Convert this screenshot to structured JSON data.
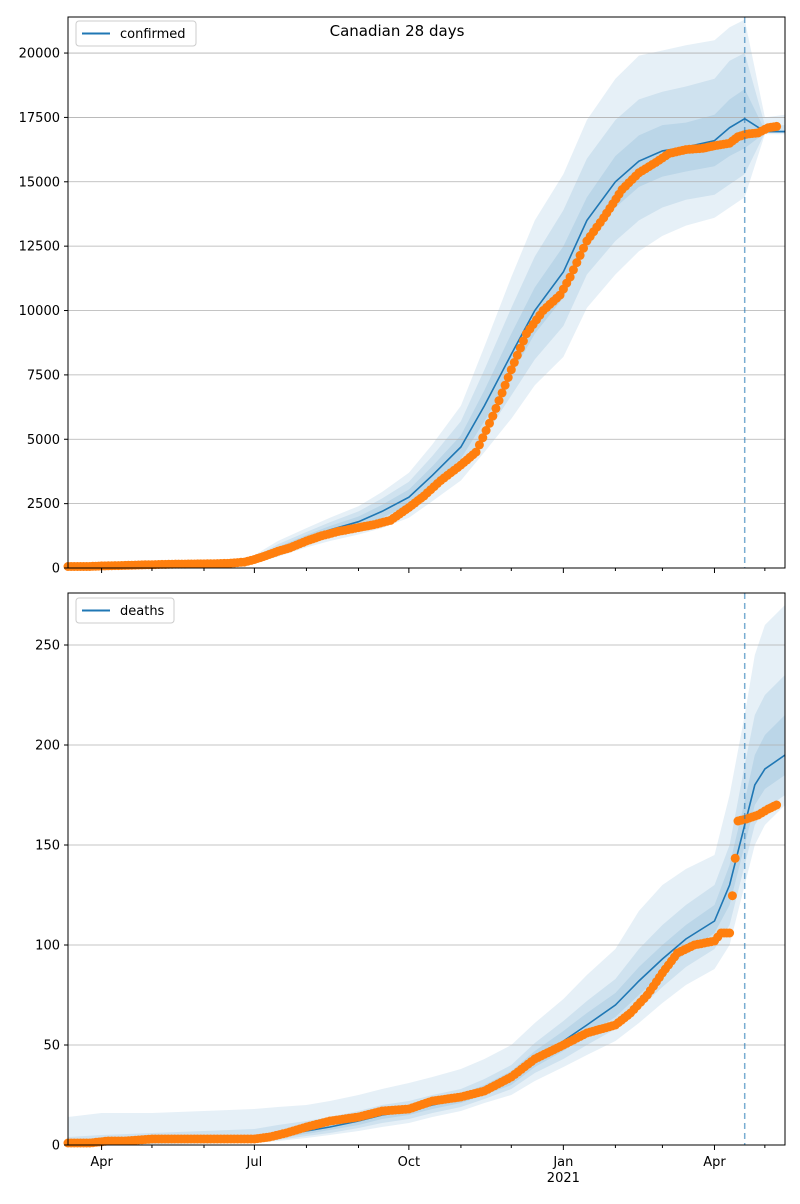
{
  "colors": {
    "model": "#1f77b4",
    "observed": "#ff7f0e",
    "band": "#1f77b4",
    "grid": "#b0b0b0",
    "vline": "#1f77b4"
  },
  "chart_data": [
    {
      "type": "line",
      "title": "Canadian 28 days",
      "legend": "confirmed",
      "legend_position": "top-left",
      "grid": "horizontal",
      "xlim": [
        "2020-03-12",
        "2021-05-13"
      ],
      "ylim": [
        0,
        21400
      ],
      "yticks": [
        0,
        2500,
        5000,
        7500,
        10000,
        12500,
        15000,
        17500,
        20000
      ],
      "ytick_labels": [
        "0",
        "2500",
        "5000",
        "7500",
        "10000",
        "12500",
        "15000",
        "17500",
        "20000"
      ],
      "forecast_start": "2021-04-19",
      "model_series": {
        "name": "confirmed",
        "x": [
          "2020-03-12",
          "2020-04-01",
          "2020-05-01",
          "2020-06-01",
          "2020-06-20",
          "2020-07-01",
          "2020-07-15",
          "2020-08-01",
          "2020-08-15",
          "2020-09-01",
          "2020-09-15",
          "2020-10-01",
          "2020-10-15",
          "2020-11-01",
          "2020-11-15",
          "2020-12-01",
          "2020-12-15",
          "2021-01-01",
          "2021-01-15",
          "2021-02-01",
          "2021-02-15",
          "2021-03-01",
          "2021-03-15",
          "2021-04-01",
          "2021-04-10",
          "2021-04-19",
          "2021-05-01",
          "2021-05-13"
        ],
        "y": [
          40,
          60,
          110,
          150,
          200,
          330,
          720,
          1150,
          1480,
          1800,
          2200,
          2750,
          3600,
          4700,
          6300,
          8300,
          10000,
          11500,
          13500,
          15000,
          15800,
          16200,
          16350,
          16600,
          17100,
          17450,
          16950,
          16950
        ],
        "band_inner_lo": [
          30,
          50,
          95,
          130,
          170,
          280,
          620,
          1020,
          1330,
          1600,
          1950,
          2450,
          3250,
          4250,
          5700,
          7500,
          9100,
          10500,
          12600,
          14000,
          14800,
          15200,
          15400,
          15600,
          16000,
          16300,
          16900,
          16900
        ],
        "band_inner_hi": [
          50,
          70,
          125,
          170,
          230,
          380,
          820,
          1280,
          1630,
          2000,
          2450,
          3050,
          3950,
          5150,
          6900,
          9100,
          10900,
          12500,
          14400,
          16000,
          16800,
          17200,
          17300,
          17600,
          18200,
          18600,
          17000,
          17000
        ],
        "band_mid_lo": [
          20,
          40,
          80,
          110,
          140,
          240,
          540,
          920,
          1200,
          1450,
          1750,
          2200,
          2950,
          3850,
          5100,
          6700,
          8100,
          9400,
          11400,
          12700,
          13500,
          14000,
          14300,
          14500,
          14900,
          15300,
          16900,
          16900
        ],
        "band_mid_hi": [
          60,
          80,
          140,
          190,
          260,
          430,
          920,
          1400,
          1780,
          2200,
          2700,
          3350,
          4350,
          5700,
          7700,
          10100,
          12100,
          13900,
          15900,
          17400,
          18200,
          18500,
          18700,
          19000,
          19700,
          20000,
          17200,
          17200
        ],
        "band_outer_lo": [
          10,
          30,
          60,
          90,
          110,
          190,
          440,
          800,
          1050,
          1300,
          1550,
          1950,
          2600,
          3400,
          4500,
          5800,
          7100,
          8200,
          10100,
          11400,
          12300,
          12900,
          13300,
          13600,
          14000,
          14400,
          16850,
          16850
        ],
        "band_outer_hi": [
          80,
          100,
          160,
          220,
          300,
          500,
          1050,
          1550,
          1950,
          2400,
          2950,
          3700,
          4800,
          6300,
          8600,
          11300,
          13500,
          15300,
          17400,
          19000,
          19900,
          20100,
          20300,
          20500,
          21000,
          21300,
          17500,
          17600
        ]
      },
      "observed": {
        "x": [
          "2020-03-12",
          "2020-03-25",
          "2020-04-01",
          "2020-04-15",
          "2020-05-01",
          "2020-05-15",
          "2020-06-01",
          "2020-06-15",
          "2020-06-25",
          "2020-07-01",
          "2020-07-08",
          "2020-07-15",
          "2020-07-22",
          "2020-08-01",
          "2020-08-10",
          "2020-08-20",
          "2020-09-01",
          "2020-09-10",
          "2020-09-20",
          "2020-10-01",
          "2020-10-10",
          "2020-10-20",
          "2020-11-01",
          "2020-11-10",
          "2020-11-20",
          "2020-12-01",
          "2020-12-10",
          "2020-12-20",
          "2020-12-30",
          "2021-01-05",
          "2021-01-15",
          "2021-01-25",
          "2021-02-05",
          "2021-02-15",
          "2021-02-25",
          "2021-03-05",
          "2021-03-15",
          "2021-03-25",
          "2021-04-01",
          "2021-04-10",
          "2021-04-15",
          "2021-04-20",
          "2021-04-27",
          "2021-05-03",
          "2021-05-08"
        ],
        "y": [
          60,
          60,
          80,
          100,
          130,
          150,
          160,
          180,
          230,
          330,
          480,
          650,
          780,
          1050,
          1250,
          1420,
          1570,
          1680,
          1850,
          2350,
          2800,
          3400,
          4000,
          4500,
          5900,
          7700,
          9100,
          10000,
          10600,
          11300,
          12700,
          13600,
          14700,
          15350,
          15750,
          16100,
          16250,
          16300,
          16400,
          16500,
          16750,
          16850,
          16900,
          17100,
          17150
        ]
      }
    },
    {
      "type": "line",
      "title": "",
      "legend": "deaths",
      "legend_position": "top-left",
      "grid": "horizontal",
      "xlim": [
        "2020-03-12",
        "2021-05-13"
      ],
      "ylim": [
        0,
        276
      ],
      "yticks": [
        0,
        50,
        100,
        150,
        200,
        250
      ],
      "ytick_labels": [
        "0",
        "50",
        "100",
        "150",
        "200",
        "250"
      ],
      "xtick_labels": [
        {
          "date": "2020-04-01",
          "label": "Apr"
        },
        {
          "date": "2020-07-01",
          "label": "Jul"
        },
        {
          "date": "2020-10-01",
          "label": "Oct"
        },
        {
          "date": "2021-01-01",
          "label": "Jan",
          "sub": "2021"
        },
        {
          "date": "2021-04-01",
          "label": "Apr"
        }
      ],
      "forecast_start": "2021-04-19",
      "model_series": {
        "name": "deaths",
        "x": [
          "2020-03-12",
          "2020-04-01",
          "2020-05-01",
          "2020-06-01",
          "2020-07-01",
          "2020-07-15",
          "2020-08-01",
          "2020-08-15",
          "2020-09-01",
          "2020-09-15",
          "2020-10-01",
          "2020-10-15",
          "2020-11-01",
          "2020-11-15",
          "2020-12-01",
          "2020-12-15",
          "2021-01-01",
          "2021-01-15",
          "2021-02-01",
          "2021-02-15",
          "2021-03-01",
          "2021-03-15",
          "2021-04-01",
          "2021-04-10",
          "2021-04-19",
          "2021-04-25",
          "2021-05-01",
          "2021-05-13"
        ],
        "y": [
          0.5,
          1,
          1.5,
          2,
          3,
          5,
          7,
          9,
          12,
          15,
          17,
          20,
          23,
          27,
          33,
          43,
          52,
          60,
          70,
          82,
          93,
          103,
          112,
          130,
          160,
          180,
          188,
          195
        ],
        "band_inner_lo": [
          0,
          0.5,
          1,
          1.5,
          2,
          3.5,
          5.5,
          7.5,
          10,
          13,
          15,
          18,
          21,
          25,
          30,
          39,
          47,
          55,
          64,
          75,
          86,
          96,
          106,
          120,
          150,
          170,
          178,
          185
        ],
        "band_inner_hi": [
          1,
          1.5,
          2.5,
          3,
          4,
          6.5,
          8.5,
          11,
          14,
          17.5,
          19.5,
          22.5,
          25.5,
          30,
          37,
          47,
          57,
          66,
          76,
          89,
          100,
          110,
          120,
          140,
          172,
          195,
          205,
          215
        ],
        "band_mid_lo": [
          0,
          0.3,
          0.5,
          1,
          1.5,
          2.5,
          4.5,
          6,
          8.5,
          11,
          13,
          16,
          19,
          23,
          28,
          36,
          43,
          50,
          58,
          68,
          79,
          89,
          98,
          110,
          140,
          160,
          168,
          175
        ],
        "band_mid_hi": [
          4,
          5,
          6,
          7,
          8,
          10,
          12,
          14,
          17,
          20,
          22,
          25,
          28,
          33,
          40,
          51,
          62,
          72,
          83,
          98,
          110,
          120,
          130,
          150,
          190,
          215,
          225,
          235
        ],
        "band_outer_lo": [
          0,
          0,
          0,
          0.5,
          1,
          2,
          3.5,
          5,
          7,
          9,
          11,
          14,
          17,
          21,
          25,
          32,
          39,
          45,
          52,
          61,
          71,
          80,
          88,
          100,
          130,
          150,
          160,
          170
        ],
        "band_outer_hi": [
          14,
          16,
          16,
          17,
          18,
          19,
          20,
          22,
          25,
          28,
          31,
          34,
          38,
          43,
          50,
          61,
          73,
          85,
          98,
          117,
          130,
          138,
          145,
          175,
          215,
          245,
          260,
          270
        ]
      },
      "observed": {
        "x": [
          "2020-03-12",
          "2020-03-25",
          "2020-04-05",
          "2020-04-15",
          "2020-05-01",
          "2020-06-01",
          "2020-07-01",
          "2020-07-10",
          "2020-07-20",
          "2020-08-01",
          "2020-08-15",
          "2020-09-01",
          "2020-09-15",
          "2020-10-01",
          "2020-10-15",
          "2020-11-01",
          "2020-11-15",
          "2020-12-01",
          "2020-12-15",
          "2021-01-01",
          "2021-01-15",
          "2021-02-01",
          "2021-02-10",
          "2021-02-20",
          "2021-03-01",
          "2021-03-10",
          "2021-03-20",
          "2021-04-01",
          "2021-04-05",
          "2021-04-10",
          "2021-04-15",
          "2021-04-20",
          "2021-04-27",
          "2021-05-03",
          "2021-05-08"
        ],
        "y": [
          1,
          1,
          2,
          2,
          3,
          3,
          3,
          4,
          6,
          9,
          12,
          14,
          17,
          18,
          22,
          24,
          27,
          34,
          43,
          50,
          56,
          60,
          66,
          75,
          86,
          96,
          100,
          102,
          106,
          106,
          162,
          163,
          165,
          168,
          170
        ]
      }
    }
  ]
}
